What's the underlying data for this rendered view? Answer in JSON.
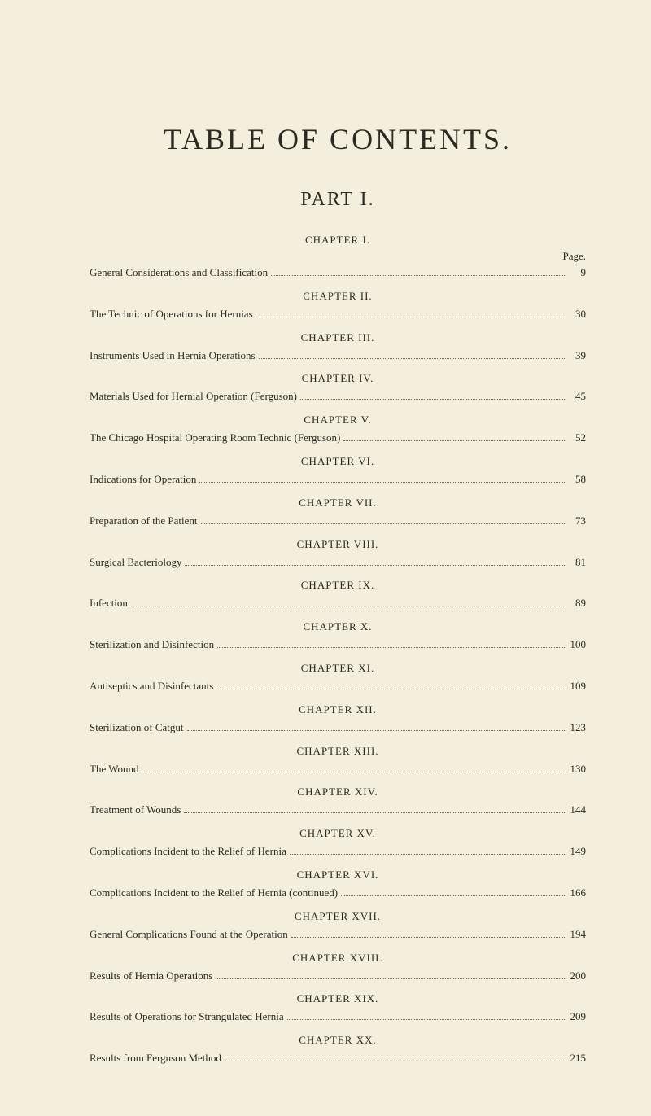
{
  "title": "TABLE OF CONTENTS.",
  "part": "PART I.",
  "page_label": "Page.",
  "colors": {
    "background": "#f3efdc",
    "text": "#2b2b22",
    "leader": "#6b6b55"
  },
  "typography": {
    "title_fontsize": 36,
    "part_fontsize": 24,
    "body_fontsize": 13,
    "font_family": "Times New Roman"
  },
  "entries": [
    {
      "heading": "CHAPTER I.",
      "label": "General Considerations and Classification",
      "page": "9"
    },
    {
      "heading": "CHAPTER II.",
      "label": "The Technic of Operations for Hernias",
      "page": "30"
    },
    {
      "heading": "CHAPTER III.",
      "label": "Instruments Used in Hernia Operations",
      "page": "39"
    },
    {
      "heading": "CHAPTER IV.",
      "label": "Materials Used for Hernial Operation (Ferguson)",
      "page": "45"
    },
    {
      "heading": "CHAPTER V.",
      "label": "The Chicago Hospital Operating Room Technic (Ferguson)",
      "page": "52"
    },
    {
      "heading": "CHAPTER VI.",
      "label": "Indications for Operation",
      "page": "58"
    },
    {
      "heading": "CHAPTER VII.",
      "label": "Preparation of the Patient",
      "page": "73"
    },
    {
      "heading": "CHAPTER VIII.",
      "label": "Surgical Bacteriology",
      "page": "81"
    },
    {
      "heading": "CHAPTER IX.",
      "label": "Infection",
      "page": "89"
    },
    {
      "heading": "CHAPTER X.",
      "label": "Sterilization and Disinfection",
      "page": "100"
    },
    {
      "heading": "CHAPTER XI.",
      "label": "Antiseptics and Disinfectants",
      "page": "109"
    },
    {
      "heading": "CHAPTER XII.",
      "label": "Sterilization of Catgut",
      "page": "123"
    },
    {
      "heading": "CHAPTER XIII.",
      "label": "The Wound",
      "page": "130"
    },
    {
      "heading": "CHAPTER XIV.",
      "label": "Treatment of Wounds",
      "page": "144"
    },
    {
      "heading": "CHAPTER XV.",
      "label": "Complications Incident to the Relief of Hernia",
      "page": "149"
    },
    {
      "heading": "CHAPTER XVI.",
      "label": "Complications Incident to the Relief of Hernia (continued)",
      "page": "166"
    },
    {
      "heading": "CHAPTER XVII.",
      "label": "General Complications Found at the Operation",
      "page": "194"
    },
    {
      "heading": "CHAPTER XVIII.",
      "label": "Results of Hernia Operations",
      "page": "200"
    },
    {
      "heading": "CHAPTER XIX.",
      "label": "Results of Operations for Strangulated Hernia",
      "page": "209"
    },
    {
      "heading": "CHAPTER XX.",
      "label": "Results from Ferguson Method",
      "page": "215"
    }
  ]
}
